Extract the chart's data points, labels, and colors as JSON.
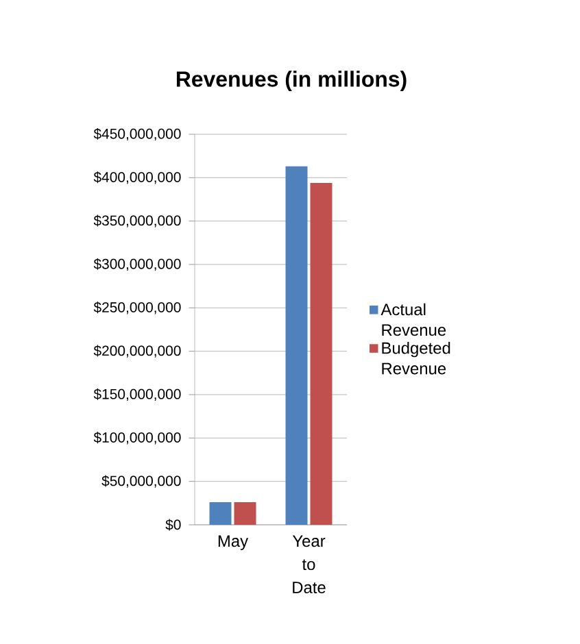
{
  "chart_data": {
    "type": "bar",
    "title": "Revenues (in millions)",
    "categories": [
      "May",
      "Year to Date"
    ],
    "series": [
      {
        "name": "Actual Revenue",
        "color": "#4f81bd",
        "values": [
          26000000,
          413000000
        ]
      },
      {
        "name": "Budgeted Revenue",
        "color": "#c0504d",
        "values": [
          26000000,
          394000000
        ]
      }
    ],
    "ylim": [
      0,
      450000000
    ],
    "yticks": [
      {
        "value": 0,
        "label": "$0"
      },
      {
        "value": 50000000,
        "label": "$50,000,000"
      },
      {
        "value": 100000000,
        "label": "$100,000,000"
      },
      {
        "value": 150000000,
        "label": "$150,000,000"
      },
      {
        "value": 200000000,
        "label": "$200,000,000"
      },
      {
        "value": 250000000,
        "label": "$250,000,000"
      },
      {
        "value": 300000000,
        "label": "$300,000,000"
      },
      {
        "value": 350000000,
        "label": "$350,000,000"
      },
      {
        "value": 400000000,
        "label": "$400,000,000"
      },
      {
        "value": 450000000,
        "label": "$450,000,000"
      }
    ],
    "grid": "y",
    "legend": "right"
  }
}
